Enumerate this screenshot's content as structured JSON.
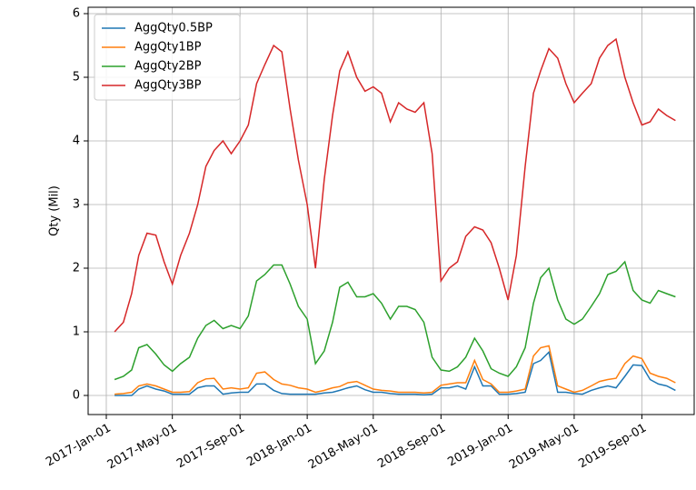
{
  "chart_data": {
    "type": "line",
    "ylabel": "Qty (Mil)",
    "x": [
      "2017-01-16",
      "2017-02-01",
      "2017-02-16",
      "2017-03-01",
      "2017-03-16",
      "2017-04-01",
      "2017-04-16",
      "2017-05-01",
      "2017-05-16",
      "2017-06-01",
      "2017-06-16",
      "2017-07-01",
      "2017-07-16",
      "2017-08-01",
      "2017-08-16",
      "2017-09-01",
      "2017-09-16",
      "2017-10-01",
      "2017-10-16",
      "2017-11-01",
      "2017-11-16",
      "2017-12-01",
      "2017-12-16",
      "2018-01-01",
      "2018-01-16",
      "2018-02-01",
      "2018-02-16",
      "2018-03-01",
      "2018-03-16",
      "2018-04-01",
      "2018-04-16",
      "2018-05-01",
      "2018-05-16",
      "2018-06-01",
      "2018-06-16",
      "2018-07-01",
      "2018-07-16",
      "2018-08-01",
      "2018-08-16",
      "2018-09-01",
      "2018-09-16",
      "2018-10-01",
      "2018-10-16",
      "2018-11-01",
      "2018-11-16",
      "2018-12-01",
      "2018-12-16",
      "2019-01-01",
      "2019-01-16",
      "2019-02-01",
      "2019-02-16",
      "2019-03-01",
      "2019-03-16",
      "2019-04-01",
      "2019-04-16",
      "2019-05-01",
      "2019-05-16",
      "2019-06-01",
      "2019-06-16",
      "2019-07-01",
      "2019-07-16",
      "2019-08-01",
      "2019-08-16",
      "2019-09-01",
      "2019-09-16",
      "2019-10-01",
      "2019-10-16",
      "2019-11-01"
    ],
    "series": [
      {
        "name": "AggQty0.5BP",
        "color": "#1f77b4",
        "values": [
          0.0,
          0.0,
          0.0,
          0.1,
          0.15,
          0.1,
          0.07,
          0.02,
          0.02,
          0.02,
          0.12,
          0.15,
          0.15,
          0.02,
          0.04,
          0.05,
          0.05,
          0.18,
          0.18,
          0.08,
          0.03,
          0.02,
          0.02,
          0.02,
          0.02,
          0.04,
          0.05,
          0.08,
          0.12,
          0.15,
          0.09,
          0.05,
          0.05,
          0.03,
          0.02,
          0.02,
          0.02,
          0.01,
          0.02,
          0.12,
          0.12,
          0.15,
          0.1,
          0.45,
          0.15,
          0.15,
          0.02,
          0.02,
          0.03,
          0.05,
          0.5,
          0.55,
          0.68,
          0.05,
          0.05,
          0.03,
          0.02,
          0.08,
          0.12,
          0.15,
          0.12,
          0.3,
          0.48,
          0.47,
          0.25,
          0.18,
          0.15,
          0.08
        ]
      },
      {
        "name": "AggQty1BP",
        "color": "#ff7f0e",
        "values": [
          0.02,
          0.03,
          0.05,
          0.15,
          0.18,
          0.15,
          0.1,
          0.05,
          0.05,
          0.06,
          0.2,
          0.26,
          0.27,
          0.1,
          0.12,
          0.1,
          0.12,
          0.35,
          0.37,
          0.25,
          0.18,
          0.16,
          0.12,
          0.1,
          0.05,
          0.08,
          0.12,
          0.14,
          0.2,
          0.22,
          0.16,
          0.1,
          0.08,
          0.07,
          0.05,
          0.05,
          0.05,
          0.04,
          0.05,
          0.16,
          0.18,
          0.2,
          0.2,
          0.55,
          0.25,
          0.18,
          0.05,
          0.05,
          0.07,
          0.1,
          0.62,
          0.75,
          0.78,
          0.15,
          0.1,
          0.05,
          0.08,
          0.15,
          0.22,
          0.25,
          0.27,
          0.5,
          0.62,
          0.58,
          0.35,
          0.3,
          0.27,
          0.2
        ]
      },
      {
        "name": "AggQty2BP",
        "color": "#2ca02c",
        "values": [
          0.25,
          0.3,
          0.4,
          0.75,
          0.8,
          0.65,
          0.48,
          0.38,
          0.5,
          0.6,
          0.9,
          1.1,
          1.18,
          1.05,
          1.1,
          1.05,
          1.25,
          1.8,
          1.9,
          2.05,
          2.05,
          1.75,
          1.4,
          1.2,
          0.5,
          0.7,
          1.15,
          1.7,
          1.78,
          1.55,
          1.55,
          1.6,
          1.45,
          1.2,
          1.4,
          1.4,
          1.35,
          1.15,
          0.6,
          0.4,
          0.38,
          0.45,
          0.6,
          0.9,
          0.7,
          0.42,
          0.35,
          0.3,
          0.45,
          0.75,
          1.45,
          1.85,
          2.0,
          1.5,
          1.2,
          1.12,
          1.2,
          1.4,
          1.6,
          1.9,
          1.95,
          2.1,
          1.65,
          1.5,
          1.45,
          1.65,
          1.6,
          1.55
        ]
      },
      {
        "name": "AggQty3BP",
        "color": "#d62728",
        "values": [
          1.0,
          1.15,
          1.6,
          2.2,
          2.55,
          2.52,
          2.1,
          1.75,
          2.2,
          2.55,
          3.0,
          3.6,
          3.85,
          4.0,
          3.8,
          4.0,
          4.25,
          4.9,
          5.2,
          5.5,
          5.4,
          4.5,
          3.7,
          3.0,
          2.0,
          3.4,
          4.4,
          5.1,
          5.4,
          5.0,
          4.78,
          4.85,
          4.75,
          4.3,
          4.6,
          4.5,
          4.45,
          4.6,
          3.8,
          1.8,
          2.0,
          2.1,
          2.5,
          2.65,
          2.6,
          2.4,
          2.0,
          1.5,
          2.2,
          3.6,
          4.75,
          5.1,
          5.45,
          5.3,
          4.9,
          4.6,
          4.75,
          4.9,
          5.3,
          5.5,
          5.6,
          5.0,
          4.6,
          4.25,
          4.3,
          4.5,
          4.4,
          4.32
        ]
      }
    ],
    "xlim": [
      "2016-11-29",
      "2019-12-05"
    ],
    "xticks": [
      {
        "value": "2017-01-01",
        "label": "2017-Jan-01"
      },
      {
        "value": "2017-05-01",
        "label": "2017-May-01"
      },
      {
        "value": "2017-09-01",
        "label": "2017-Sep-01"
      },
      {
        "value": "2018-01-01",
        "label": "2018-Jan-01"
      },
      {
        "value": "2018-05-01",
        "label": "2018-May-01"
      },
      {
        "value": "2018-09-01",
        "label": "2018-Sep-01"
      },
      {
        "value": "2019-01-01",
        "label": "2019-Jan-01"
      },
      {
        "value": "2019-05-01",
        "label": "2019-May-01"
      },
      {
        "value": "2019-09-01",
        "label": "2019-Sep-01"
      }
    ],
    "ylim": [
      -0.3,
      6.1
    ],
    "yticks": [
      0,
      1,
      2,
      3,
      4,
      5,
      6
    ],
    "grid": true,
    "legend": "upper left"
  }
}
